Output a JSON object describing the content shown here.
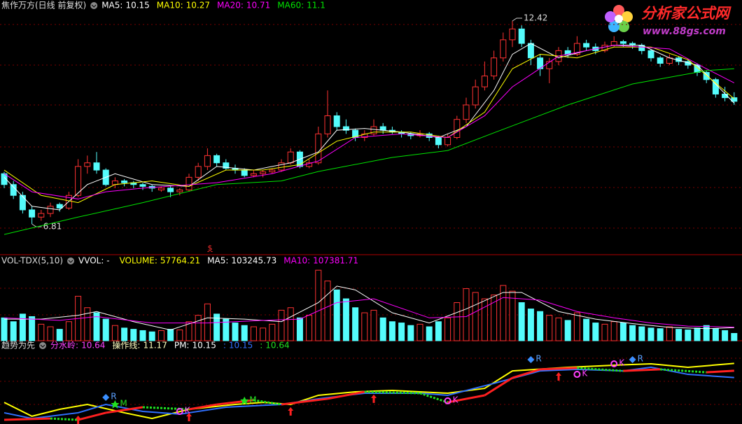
{
  "chart_data": [
    {
      "type": "candlestick",
      "title": "焦作万方(日线 前复权)",
      "ylim": [
        6,
        13
      ],
      "up_color": "#ff3232",
      "down_color": "#54fcfc",
      "annotation": "$",
      "ohlc": [
        [
          8.2,
          8.25,
          7.8,
          7.9
        ],
        [
          7.9,
          8.0,
          7.5,
          7.6
        ],
        [
          7.6,
          7.7,
          7.1,
          7.2
        ],
        [
          7.2,
          7.3,
          6.81,
          7.0
        ],
        [
          7.0,
          7.2,
          6.9,
          7.1
        ],
        [
          7.1,
          7.4,
          7.0,
          7.3
        ],
        [
          7.35,
          7.4,
          7.15,
          7.25
        ],
        [
          7.25,
          7.7,
          7.2,
          7.6
        ],
        [
          7.6,
          8.6,
          7.55,
          8.4
        ],
        [
          8.4,
          8.7,
          8.2,
          8.5
        ],
        [
          8.5,
          8.8,
          8.2,
          8.3
        ],
        [
          8.3,
          8.35,
          7.85,
          7.9
        ],
        [
          7.9,
          8.1,
          7.8,
          8.0
        ],
        [
          8.0,
          8.05,
          7.85,
          7.95
        ],
        [
          7.95,
          8.0,
          7.8,
          7.9
        ],
        [
          7.9,
          7.95,
          7.75,
          7.85
        ],
        [
          7.85,
          7.9,
          7.7,
          7.8
        ],
        [
          7.75,
          7.85,
          7.7,
          7.8
        ],
        [
          7.8,
          7.85,
          7.55,
          7.7
        ],
        [
          7.7,
          7.8,
          7.6,
          7.75
        ],
        [
          7.75,
          8.2,
          7.7,
          8.1
        ],
        [
          8.1,
          8.5,
          8.0,
          8.4
        ],
        [
          8.4,
          8.9,
          8.3,
          8.7
        ],
        [
          8.7,
          8.75,
          8.4,
          8.5
        ],
        [
          8.5,
          8.6,
          8.3,
          8.35
        ],
        [
          8.35,
          8.45,
          8.2,
          8.3
        ],
        [
          8.3,
          8.35,
          8.1,
          8.15
        ],
        [
          8.15,
          8.3,
          8.1,
          8.2
        ],
        [
          8.2,
          8.3,
          8.1,
          8.25
        ],
        [
          8.25,
          8.35,
          8.2,
          8.3
        ],
        [
          8.3,
          8.6,
          8.25,
          8.5
        ],
        [
          8.5,
          8.9,
          8.45,
          8.8
        ],
        [
          8.8,
          8.85,
          8.35,
          8.4
        ],
        [
          8.4,
          8.6,
          8.35,
          8.5
        ],
        [
          8.5,
          9.5,
          8.45,
          9.3
        ],
        [
          9.3,
          10.5,
          9.2,
          9.8
        ],
        [
          9.8,
          9.9,
          9.4,
          9.5
        ],
        [
          9.5,
          9.7,
          9.3,
          9.4
        ],
        [
          9.4,
          9.45,
          9.1,
          9.2
        ],
        [
          9.2,
          9.4,
          9.1,
          9.3
        ],
        [
          9.3,
          9.7,
          9.25,
          9.5
        ],
        [
          9.5,
          9.6,
          9.3,
          9.4
        ],
        [
          9.4,
          9.5,
          9.3,
          9.35
        ],
        [
          9.35,
          9.4,
          9.2,
          9.3
        ],
        [
          9.3,
          9.35,
          9.15,
          9.25
        ],
        [
          9.25,
          9.4,
          9.2,
          9.3
        ],
        [
          9.3,
          9.35,
          9.1,
          9.2
        ],
        [
          9.2,
          9.25,
          8.9,
          9.0
        ],
        [
          9.0,
          9.3,
          8.95,
          9.2
        ],
        [
          9.2,
          9.8,
          9.15,
          9.7
        ],
        [
          9.7,
          10.3,
          9.6,
          10.1
        ],
        [
          10.1,
          10.8,
          10.0,
          10.6
        ],
        [
          10.6,
          11.3,
          10.5,
          10.9
        ],
        [
          10.9,
          11.6,
          10.8,
          11.4
        ],
        [
          11.4,
          12.1,
          11.3,
          11.9
        ],
        [
          11.9,
          12.42,
          11.7,
          12.2
        ],
        [
          12.2,
          12.3,
          11.7,
          11.8
        ],
        [
          11.8,
          11.9,
          11.2,
          11.4
        ],
        [
          11.4,
          11.5,
          10.9,
          11.1
        ],
        [
          11.1,
          11.4,
          10.7,
          11.3
        ],
        [
          11.3,
          11.7,
          11.2,
          11.6
        ],
        [
          11.6,
          11.7,
          11.4,
          11.5
        ],
        [
          11.5,
          12.0,
          11.45,
          11.8
        ],
        [
          11.8,
          11.9,
          11.6,
          11.7
        ],
        [
          11.7,
          11.8,
          11.5,
          11.6
        ],
        [
          11.6,
          11.85,
          11.55,
          11.75
        ],
        [
          11.75,
          12.0,
          11.7,
          11.85
        ],
        [
          11.85,
          11.9,
          11.7,
          11.8
        ],
        [
          11.8,
          11.85,
          11.65,
          11.75
        ],
        [
          11.75,
          11.8,
          11.5,
          11.6
        ],
        [
          11.6,
          11.65,
          11.3,
          11.4
        ],
        [
          11.4,
          11.45,
          11.15,
          11.25
        ],
        [
          11.25,
          11.5,
          11.2,
          11.4
        ],
        [
          11.4,
          11.45,
          11.2,
          11.3
        ],
        [
          11.3,
          11.35,
          11.1,
          11.2
        ],
        [
          11.2,
          11.25,
          10.9,
          11.0
        ],
        [
          11.0,
          11.05,
          10.7,
          10.8
        ],
        [
          10.8,
          10.85,
          10.3,
          10.4
        ],
        [
          10.4,
          10.6,
          10.2,
          10.3
        ],
        [
          10.3,
          10.45,
          10.1,
          10.2
        ]
      ],
      "series": [
        {
          "color": "#ffffff",
          "x": [
            0,
            3,
            6,
            9,
            12,
            16,
            20,
            23,
            27,
            31,
            34,
            36,
            39,
            43,
            47,
            50,
            53,
            55,
            57,
            60,
            63,
            66,
            69,
            72,
            75,
            79
          ],
          "values": [
            8.1,
            7.3,
            7.2,
            7.9,
            8.2,
            7.9,
            7.85,
            8.4,
            8.3,
            8.5,
            8.8,
            9.4,
            9.45,
            9.35,
            9.2,
            9.5,
            10.5,
            11.5,
            11.8,
            11.4,
            11.6,
            11.75,
            11.75,
            11.4,
            11.2,
            10.15
          ]
        },
        {
          "color": "#ffff00",
          "x": [
            0,
            4,
            8,
            12,
            16,
            20,
            24,
            28,
            32,
            36,
            40,
            44,
            48,
            52,
            55,
            58,
            62,
            66,
            70,
            74,
            79
          ],
          "values": [
            8.3,
            7.6,
            7.4,
            7.9,
            8.0,
            7.85,
            8.3,
            8.3,
            8.45,
            9.1,
            9.35,
            9.35,
            9.2,
            9.9,
            11.1,
            11.5,
            11.4,
            11.7,
            11.7,
            11.35,
            10.27
          ]
        },
        {
          "color": "#ff00ff",
          "x": [
            0,
            3,
            8,
            11,
            15,
            23,
            29,
            34,
            38,
            43,
            48,
            52,
            55,
            60,
            66,
            72,
            76,
            79
          ],
          "values": [
            8.2,
            7.7,
            7.5,
            7.7,
            7.8,
            7.95,
            8.2,
            8.55,
            9.2,
            9.3,
            9.2,
            9.8,
            10.6,
            11.45,
            11.75,
            11.65,
            11.1,
            10.71
          ]
        },
        {
          "color": "#00e600",
          "x": [
            0,
            8,
            15,
            23,
            30,
            34,
            42,
            48,
            53,
            61,
            68,
            76,
            79
          ],
          "values": [
            6.52,
            7.0,
            7.4,
            7.9,
            8.0,
            8.26,
            8.65,
            8.84,
            9.33,
            10.1,
            10.68,
            11.05,
            11.1
          ]
        }
      ],
      "legend": [
        {
          "label": "MA5:",
          "value": 10.15,
          "color": "#ffffff"
        },
        {
          "label": "MA10:",
          "value": 10.27,
          "color": "#ffff00"
        },
        {
          "label": "MA20:",
          "value": 10.71,
          "color": "#ff00ff"
        },
        {
          "label": "MA60:",
          "value": 11.1,
          "color": "#00e600"
        }
      ]
    },
    {
      "type": "volume",
      "title": "VOL-TDX(5,10)",
      "ylim": [
        0,
        600000
      ],
      "values": [
        180000,
        150000,
        210000,
        190000,
        130000,
        110000,
        90000,
        150000,
        350000,
        260000,
        220000,
        170000,
        120000,
        100000,
        90000,
        80000,
        70000,
        80000,
        90000,
        85000,
        150000,
        200000,
        290000,
        210000,
        170000,
        140000,
        120000,
        110000,
        100000,
        130000,
        240000,
        260000,
        180000,
        200000,
        555000,
        470000,
        400000,
        330000,
        260000,
        220000,
        240000,
        180000,
        150000,
        140000,
        120000,
        130000,
        110000,
        150000,
        180000,
        300000,
        410000,
        380000,
        330000,
        360000,
        435000,
        390000,
        300000,
        250000,
        230000,
        200000,
        180000,
        160000,
        220000,
        170000,
        140000,
        130000,
        150000,
        140000,
        120000,
        110000,
        100000,
        95000,
        110000,
        90000,
        85000,
        100000,
        120000,
        95000,
        80000,
        57764.21
      ],
      "series": [
        {
          "color": "#ffffff",
          "x": [
            0,
            4,
            8,
            10,
            14,
            18,
            22,
            26,
            30,
            34,
            36,
            38,
            42,
            46,
            50,
            54,
            56,
            60,
            64,
            68,
            72,
            76,
            79
          ],
          "values": [
            170000,
            170000,
            200000,
            230000,
            150000,
            85000,
            180000,
            170000,
            150000,
            300000,
            430000,
            400000,
            220000,
            140000,
            250000,
            380000,
            380000,
            230000,
            170000,
            135000,
            105000,
            95000,
            103245.73
          ]
        },
        {
          "color": "#ff00ff",
          "x": [
            0,
            6,
            10,
            16,
            22,
            28,
            32,
            36,
            40,
            46,
            50,
            54,
            58,
            62,
            66,
            70,
            74,
            79
          ],
          "values": [
            180000,
            160000,
            190000,
            140000,
            140000,
            160000,
            170000,
            300000,
            330000,
            180000,
            190000,
            340000,
            320000,
            230000,
            180000,
            140000,
            115000,
            107381.71
          ]
        }
      ],
      "legend": [
        {
          "label": "VVOL: -",
          "color": "#ffffff"
        },
        {
          "label": "VOLUME:",
          "value": 57764.21,
          "color": "#ffff00"
        },
        {
          "label": "MA5:",
          "value": 103245.73,
          "color": "#ffffff"
        },
        {
          "label": "MA10:",
          "value": 107381.71,
          "color": "#ff00ff"
        }
      ]
    },
    {
      "type": "indicator",
      "title": "趋势为先",
      "ylim": [
        6.8,
        12.3
      ],
      "series": [
        {
          "color": "#ffff00",
          "x": [
            0,
            3,
            6,
            9,
            13,
            16,
            20,
            25,
            28,
            31,
            34,
            38,
            42,
            48,
            52,
            55,
            61,
            66,
            70,
            74,
            79
          ],
          "values": [
            8.36,
            7.36,
            7.86,
            8.21,
            7.61,
            7.2,
            7.86,
            8.21,
            8.36,
            8.21,
            8.87,
            9.12,
            9.22,
            9.02,
            9.37,
            10.63,
            10.89,
            11.04,
            11.14,
            10.89,
            11.17
          ]
        },
        {
          "color": "#3070ff",
          "x": [
            0,
            3,
            8,
            11,
            15,
            19,
            24,
            30,
            34,
            39,
            45,
            48,
            53,
            58,
            62,
            67,
            70,
            74,
            79
          ],
          "values": [
            7.61,
            7.2,
            7.61,
            8.21,
            7.71,
            7.51,
            8.01,
            8.21,
            8.62,
            9.02,
            9.02,
            8.87,
            9.73,
            10.63,
            10.74,
            10.63,
            10.89,
            10.38,
            10.15
          ]
        },
        {
          "up_color": "#ff2020",
          "down_color": "#20e020",
          "x": [
            0,
            5,
            8,
            11,
            15,
            20,
            23,
            27,
            30,
            35,
            39,
            45,
            48,
            52,
            55,
            58,
            62,
            67,
            71,
            76,
            79
          ],
          "values": [
            7.1,
            7.2,
            7.1,
            7.61,
            8.01,
            7.86,
            8.21,
            8.52,
            8.21,
            8.62,
            9.12,
            9.02,
            8.36,
            8.87,
            10.13,
            10.74,
            10.84,
            10.63,
            10.74,
            10.53,
            10.64
          ]
        }
      ],
      "signals": [
        {
          "kind": "diamond",
          "x": 11,
          "value": 8.72,
          "label": "R"
        },
        {
          "kind": "star",
          "x": 12,
          "value": 8.21,
          "label": "M"
        },
        {
          "kind": "arrow",
          "x": 8,
          "value": 7.1
        },
        {
          "kind": "circle",
          "x": 19,
          "value": 7.71,
          "label": "K"
        },
        {
          "kind": "arrow",
          "x": 20,
          "value": 7.3
        },
        {
          "kind": "star",
          "x": 26,
          "value": 8.47,
          "label": "M"
        },
        {
          "kind": "arrow",
          "x": 31,
          "value": 7.71
        },
        {
          "kind": "arrow",
          "x": 40,
          "value": 8.62
        },
        {
          "kind": "circle",
          "x": 48,
          "value": 8.47,
          "label": "K"
        },
        {
          "kind": "diamond",
          "x": 57,
          "value": 11.44,
          "label": "R"
        },
        {
          "kind": "arrow",
          "x": 60,
          "value": 10.23
        },
        {
          "kind": "circle",
          "x": 62,
          "value": 10.38,
          "label": "K"
        },
        {
          "kind": "circle",
          "x": 66,
          "value": 11.14,
          "label": "K"
        },
        {
          "kind": "diamond",
          "x": 68,
          "value": 11.44,
          "label": "R"
        }
      ],
      "legend": [
        {
          "label": "分水岭:",
          "value": 10.64,
          "color": "#ff40ff"
        },
        {
          "label": "操作线:",
          "value": 11.17,
          "color": "#ffffc0"
        },
        {
          "label": "PM:",
          "value": 10.15,
          "color": "#ffffff"
        },
        {
          "label": ":",
          "value": 10.15,
          "color": "#3070ff"
        },
        {
          "label": ":",
          "value": 10.64,
          "color": "#20e020"
        }
      ]
    }
  ],
  "logo": {
    "name": "分析家公式网",
    "url": "www.88gs.com"
  }
}
